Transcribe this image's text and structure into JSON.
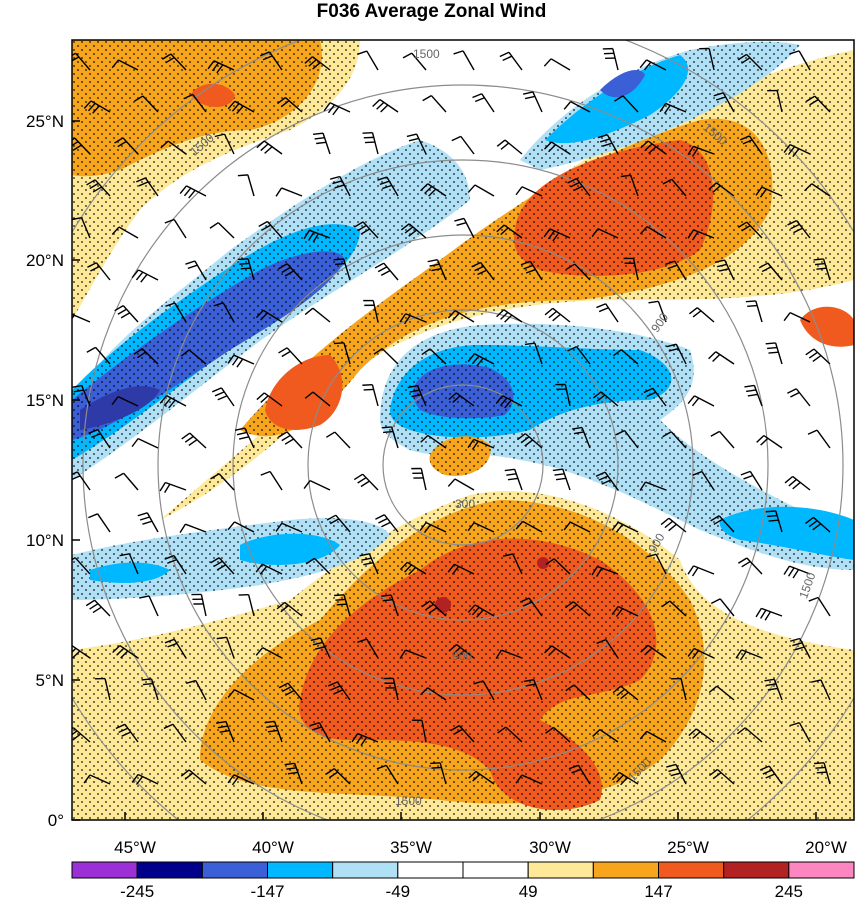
{
  "title": "F036 Average Zonal Wind",
  "axes": {
    "lat_ticks": [
      "0°",
      "5°N",
      "10°N",
      "15°N",
      "20°N",
      "25°N"
    ],
    "lon_ticks": [
      "45°W",
      "40°W",
      "35°W",
      "30°W",
      "25°W",
      "20°W"
    ]
  },
  "range_rings": {
    "labels": [
      "300",
      "900",
      "900",
      "900",
      "1500",
      "1500",
      "1500",
      "1500",
      "1500",
      "1500"
    ]
  },
  "colorbar": {
    "labels": [
      "-245",
      "-147",
      "-49",
      "49",
      "147",
      "245"
    ],
    "colors": [
      "#9b30d6",
      "#00008b",
      "#3a5fd6",
      "#00b8ff",
      "#b0e0f6",
      "#ffffff",
      "#ffffff",
      "#fde998",
      "#f7a51c",
      "#f05a1e",
      "#b22222",
      "#fb86c0"
    ]
  },
  "map_colors": {
    "orange": "#f7a51c",
    "pale_yellow": "#fde998",
    "red": "#f05a1e",
    "dark_red": "#b22222",
    "light_blue": "#b0e0f6",
    "mid_blue": "#00b8ff",
    "blue": "#3a5fd6",
    "navy": "#2e3aa8"
  }
}
